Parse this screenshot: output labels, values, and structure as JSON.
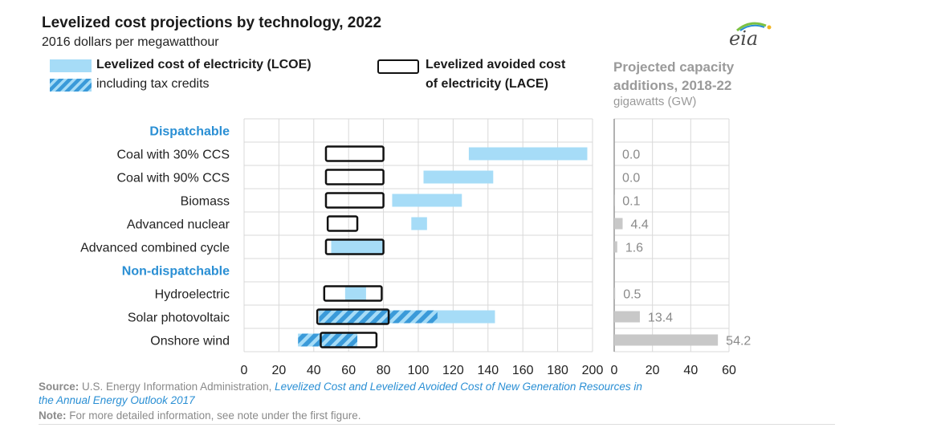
{
  "title": "Levelized cost projections by technology, 2022",
  "subtitle": "2016 dollars per megawatthour",
  "logo_text": "eia",
  "legend": {
    "lcoe": "Levelized cost of electricity (LCOE)",
    "tax_credits": "including tax credits",
    "lace_line1": "Levelized avoided cost",
    "lace_line2": "of electricity (LACE)"
  },
  "capacity_header": {
    "line1": "Projected capacity",
    "line2": "additions, 2018-22",
    "unit": "gigawatts (GW)"
  },
  "colors": {
    "lcoe": "#a6dcf7",
    "hatch": "#3a9ad9",
    "lace_border": "#111111",
    "category": "#2a8fd4",
    "capacity_bar": "#c8c8c8",
    "grid": "#d9d9d9"
  },
  "chart_data": [
    {
      "type": "bar",
      "title": "Levelized cost projections by technology, 2022",
      "units": "2016 dollars per megawatthour",
      "xlim": [
        0,
        200
      ],
      "xticks": [
        0,
        20,
        40,
        60,
        80,
        100,
        120,
        140,
        160,
        180,
        200
      ],
      "rows": [
        {
          "label": "Dispatchable",
          "is_header": true
        },
        {
          "label": "Coal with 30% CCS",
          "lcoe": [
            129,
            197
          ],
          "lace": [
            47,
            80
          ]
        },
        {
          "label": "Coal with 90% CCS",
          "lcoe": [
            103,
            143
          ],
          "lace": [
            47,
            80
          ]
        },
        {
          "label": "Biomass",
          "lcoe": [
            85,
            125
          ],
          "lace": [
            47,
            80
          ]
        },
        {
          "label": "Advanced nuclear",
          "lcoe": [
            96,
            105
          ],
          "lace": [
            48,
            65
          ]
        },
        {
          "label": "Advanced combined cycle",
          "lcoe": [
            50,
            80
          ],
          "lace": [
            47,
            80
          ]
        },
        {
          "label": "Non-dispatchable",
          "is_header": true
        },
        {
          "label": "Hydroelectric",
          "lcoe": [
            58,
            70
          ],
          "lace": [
            46,
            79
          ]
        },
        {
          "label": "Solar photovoltaic",
          "lcoe": [
            43,
            144
          ],
          "lcoe_tax": [
            43,
            111
          ],
          "lace": [
            42,
            83
          ]
        },
        {
          "label": "Onshore wind",
          "lcoe": [
            31,
            65
          ],
          "lcoe_tax": [
            31,
            65
          ],
          "lace": [
            44,
            76
          ]
        }
      ]
    },
    {
      "type": "bar",
      "title": "Projected capacity additions, 2018-22",
      "units": "gigawatts (GW)",
      "xlim": [
        0,
        60
      ],
      "xticks": [
        0,
        20,
        40,
        60
      ],
      "labels": [
        "Coal with 30% CCS",
        "Coal with 90% CCS",
        "Biomass",
        "Advanced nuclear",
        "Advanced combined cycle",
        "Hydroelectric",
        "Solar photovoltaic",
        "Onshore wind"
      ],
      "values": [
        0.0,
        0.0,
        0.1,
        4.4,
        1.6,
        0.5,
        13.4,
        54.2
      ],
      "value_labels": [
        "0.0",
        "0.0",
        "0.1",
        "4.4",
        "1.6",
        "0.5",
        "13.4",
        "54.2"
      ]
    }
  ],
  "footer": {
    "source_label": "Source:",
    "source_text": "U.S. Energy Information Administration,",
    "source_link_line1": "Levelized Cost and Levelized Avoided Cost of New Generation Resources in",
    "source_link_line2": "the Annual Energy Outlook 2017",
    "note_label": "Note:",
    "note_text": "For more detailed information, see note under the first figure."
  }
}
